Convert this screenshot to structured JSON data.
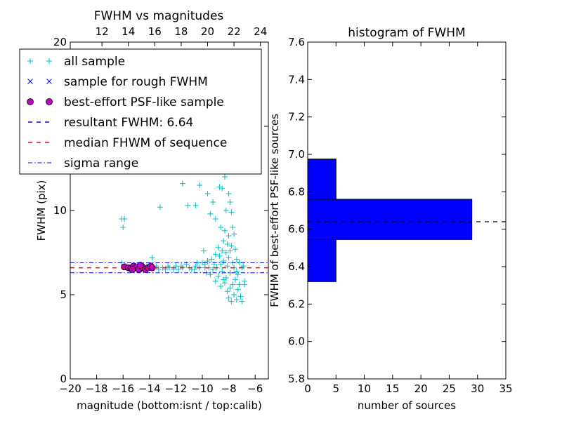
{
  "chart_data": [
    {
      "type": "scatter",
      "title": "FWHM vs magnitudes",
      "xlabel": "magnitude (bottom:isnt / top:calib)",
      "ylabel": "FWHM (pix)",
      "xlim": [
        -20,
        -5
      ],
      "ylim": [
        0,
        20
      ],
      "xticks": [
        -20,
        -18,
        -16,
        -14,
        -12,
        -10,
        -8,
        -6
      ],
      "xticklabels": [
        "−20",
        "−18",
        "−16",
        "−14",
        "−12",
        "−10",
        "−8",
        "−6"
      ],
      "yticks": [
        0,
        5,
        10,
        15,
        20
      ],
      "yticklabels": [
        "0",
        "5",
        "10",
        "15",
        "20"
      ],
      "top_xlim": [
        9.6,
        24.6
      ],
      "top_xticks": [
        12,
        14,
        16,
        18,
        20,
        22,
        24
      ],
      "top_xticklabels": [
        "12",
        "14",
        "16",
        "18",
        "20",
        "22",
        "24"
      ],
      "series": [
        {
          "name": "all sample",
          "marker": "+",
          "color": "#00bfbf",
          "points": [
            [
              -16.1,
              9.5
            ],
            [
              -16.0,
              9.0
            ],
            [
              -15.9,
              9.5
            ],
            [
              -13.2,
              10.2
            ],
            [
              -11.5,
              11.6
            ],
            [
              -11.1,
              10.3
            ],
            [
              -10.5,
              10.3
            ],
            [
              -10.2,
              11.5
            ],
            [
              -9.6,
              11.0
            ],
            [
              -9.4,
              9.8
            ],
            [
              -9.2,
              10.5
            ],
            [
              -9.0,
              9.5
            ],
            [
              -8.7,
              11.4
            ],
            [
              -8.5,
              11.3
            ],
            [
              -8.3,
              12.0
            ],
            [
              -8.1,
              12.5
            ],
            [
              -8.0,
              11.0
            ],
            [
              -7.9,
              10.5
            ],
            [
              -8.2,
              10.0
            ],
            [
              -7.8,
              9.9
            ],
            [
              -8.6,
              9.0
            ],
            [
              -8.3,
              8.8
            ],
            [
              -8.0,
              8.5
            ],
            [
              -7.7,
              9.0
            ],
            [
              -7.6,
              8.6
            ],
            [
              -8.4,
              8.2
            ],
            [
              -8.1,
              8.0
            ],
            [
              -7.8,
              7.9
            ],
            [
              -8.8,
              7.8
            ],
            [
              -8.5,
              7.6
            ],
            [
              -8.2,
              7.5
            ],
            [
              -7.9,
              7.6
            ],
            [
              -7.5,
              7.7
            ],
            [
              -9.0,
              7.4
            ],
            [
              -8.7,
              7.3
            ],
            [
              -8.0,
              7.2
            ],
            [
              -7.4,
              7.1
            ],
            [
              -9.3,
              7.1
            ],
            [
              -8.4,
              7.0
            ],
            [
              -7.7,
              6.9
            ],
            [
              -7.2,
              6.9
            ],
            [
              -9.6,
              7.0
            ],
            [
              -9.1,
              6.8
            ],
            [
              -8.6,
              6.8
            ],
            [
              -8.1,
              6.7
            ],
            [
              -7.6,
              6.6
            ],
            [
              -7.0,
              6.6
            ],
            [
              -9.8,
              6.6
            ],
            [
              -9.2,
              6.5
            ],
            [
              -8.5,
              6.4
            ],
            [
              -7.9,
              6.3
            ],
            [
              -7.3,
              6.2
            ],
            [
              -9.4,
              6.2
            ],
            [
              -8.8,
              6.1
            ],
            [
              -8.2,
              6.0
            ],
            [
              -7.5,
              5.9
            ],
            [
              -9.0,
              5.8
            ],
            [
              -8.3,
              5.7
            ],
            [
              -7.7,
              5.6
            ],
            [
              -8.6,
              5.5
            ],
            [
              -7.9,
              5.4
            ],
            [
              -7.3,
              5.3
            ],
            [
              -8.1,
              5.2
            ],
            [
              -7.6,
              5.0
            ],
            [
              -7.1,
              4.9
            ],
            [
              -8.0,
              4.8
            ],
            [
              -7.4,
              4.7
            ],
            [
              -7.0,
              4.6
            ],
            [
              -7.8,
              4.6
            ],
            [
              -6.8,
              5.6
            ],
            [
              -6.8,
              5.8
            ],
            [
              -7.2,
              5.6
            ],
            [
              -8.4,
              5.9
            ],
            [
              -9.7,
              6.3
            ],
            [
              -10.0,
              6.9
            ],
            [
              -9.9,
              7.6
            ],
            [
              -15.5,
              6.6
            ],
            [
              -15.0,
              6.7
            ],
            [
              -14.5,
              6.6
            ],
            [
              -14.0,
              6.6
            ],
            [
              -13.5,
              6.7
            ],
            [
              -13.0,
              6.6
            ],
            [
              -12.5,
              6.6
            ],
            [
              -12.0,
              6.7
            ],
            [
              -11.5,
              6.6
            ],
            [
              -11.0,
              6.6
            ],
            [
              -10.5,
              6.7
            ],
            [
              -10.2,
              6.6
            ],
            [
              -13.8,
              7.2
            ],
            [
              -14.6,
              6.5
            ],
            [
              -12.8,
              6.5
            ],
            [
              -11.8,
              6.5
            ],
            [
              -11.2,
              6.8
            ],
            [
              -10.8,
              6.5
            ],
            [
              -12.2,
              6.5
            ],
            [
              -13.3,
              6.5
            ],
            [
              -14.2,
              6.7
            ],
            [
              -15.8,
              6.7
            ],
            [
              -16.1,
              6.9
            ],
            [
              -10.4,
              6.9
            ],
            [
              -9.5,
              6.6
            ],
            [
              -8.9,
              6.6
            ],
            [
              -7.4,
              6.4
            ],
            [
              -6.9,
              6.7
            ],
            [
              -12.6,
              6.7
            ],
            [
              -11.6,
              6.7
            ],
            [
              -10.6,
              6.5
            ],
            [
              -9.8,
              6.8
            ]
          ]
        },
        {
          "name": "sample for rough FWHM",
          "marker": "x",
          "color": "#0000ff",
          "points": []
        },
        {
          "name": "best-effort PSF-like sample",
          "marker": "o",
          "color": "#bf00bf",
          "points": [
            [
              -15.9,
              6.65
            ],
            [
              -15.6,
              6.6
            ],
            [
              -15.4,
              6.55
            ],
            [
              -15.2,
              6.7
            ],
            [
              -15.0,
              6.6
            ],
            [
              -14.8,
              6.5
            ],
            [
              -14.6,
              6.7
            ],
            [
              -14.5,
              6.6
            ],
            [
              -14.3,
              6.5
            ],
            [
              -14.1,
              6.6
            ],
            [
              -13.9,
              6.7
            ],
            [
              -13.8,
              6.6
            ],
            [
              -15.3,
              6.5
            ],
            [
              -14.7,
              6.75
            ]
          ]
        }
      ],
      "hlines": [
        {
          "name": "resultant FWHM: 6.64",
          "y": 6.64,
          "color": "#0000ff",
          "style": "dashed",
          "in_plot": false
        },
        {
          "name": "median FHWM of sequence",
          "y": 6.6,
          "color": "#ff0000",
          "style": "dashed",
          "in_plot": true
        },
        {
          "name": "sigma range",
          "y": [
            6.3,
            6.9
          ],
          "color": "#0000ff",
          "style": "dashdot",
          "in_plot": true
        }
      ],
      "legend": {
        "position": "top-left",
        "entries": [
          {
            "label": "all sample",
            "kind": "plus",
            "color": "#00bfbf"
          },
          {
            "label": "sample for rough FWHM",
            "kind": "cross",
            "color": "#0000ff"
          },
          {
            "label": "best-effort PSF-like sample",
            "kind": "circle",
            "color": "#bf00bf"
          },
          {
            "label": "resultant FWHM: 6.64",
            "kind": "dashed",
            "color": "#0000ff"
          },
          {
            "label": "median FHWM of sequence",
            "kind": "dashed",
            "color": "#ff0000"
          },
          {
            "label": "sigma range",
            "kind": "dashdot",
            "color": "#0000ff"
          }
        ]
      }
    },
    {
      "type": "bar",
      "orientation": "horizontal",
      "title": "histogram of FWHM",
      "xlabel": "number of sources",
      "ylabel": "FWHM of best-effort PSF-like sources",
      "xlim": [
        0,
        35
      ],
      "ylim": [
        5.8,
        7.6
      ],
      "xticks": [
        0,
        5,
        10,
        15,
        20,
        25,
        30,
        35
      ],
      "xticklabels": [
        "0",
        "5",
        "10",
        "15",
        "20",
        "25",
        "30",
        "35"
      ],
      "yticks": [
        5.8,
        6.0,
        6.2,
        6.4,
        6.6,
        6.8,
        7.0,
        7.2,
        7.4,
        7.6
      ],
      "yticklabels": [
        "5.8",
        "6.0",
        "6.2",
        "6.4",
        "6.6",
        "6.8",
        "7.0",
        "7.2",
        "7.4",
        "7.6"
      ],
      "bins": [
        {
          "from": 6.32,
          "to": 6.545,
          "count": 5
        },
        {
          "from": 6.545,
          "to": 6.76,
          "count": 29
        },
        {
          "from": 6.76,
          "to": 6.975,
          "count": 5
        }
      ],
      "bar_color": "#0000ff",
      "reference_line": {
        "y": 6.64,
        "color": "#000000",
        "style": "dashed"
      }
    }
  ]
}
